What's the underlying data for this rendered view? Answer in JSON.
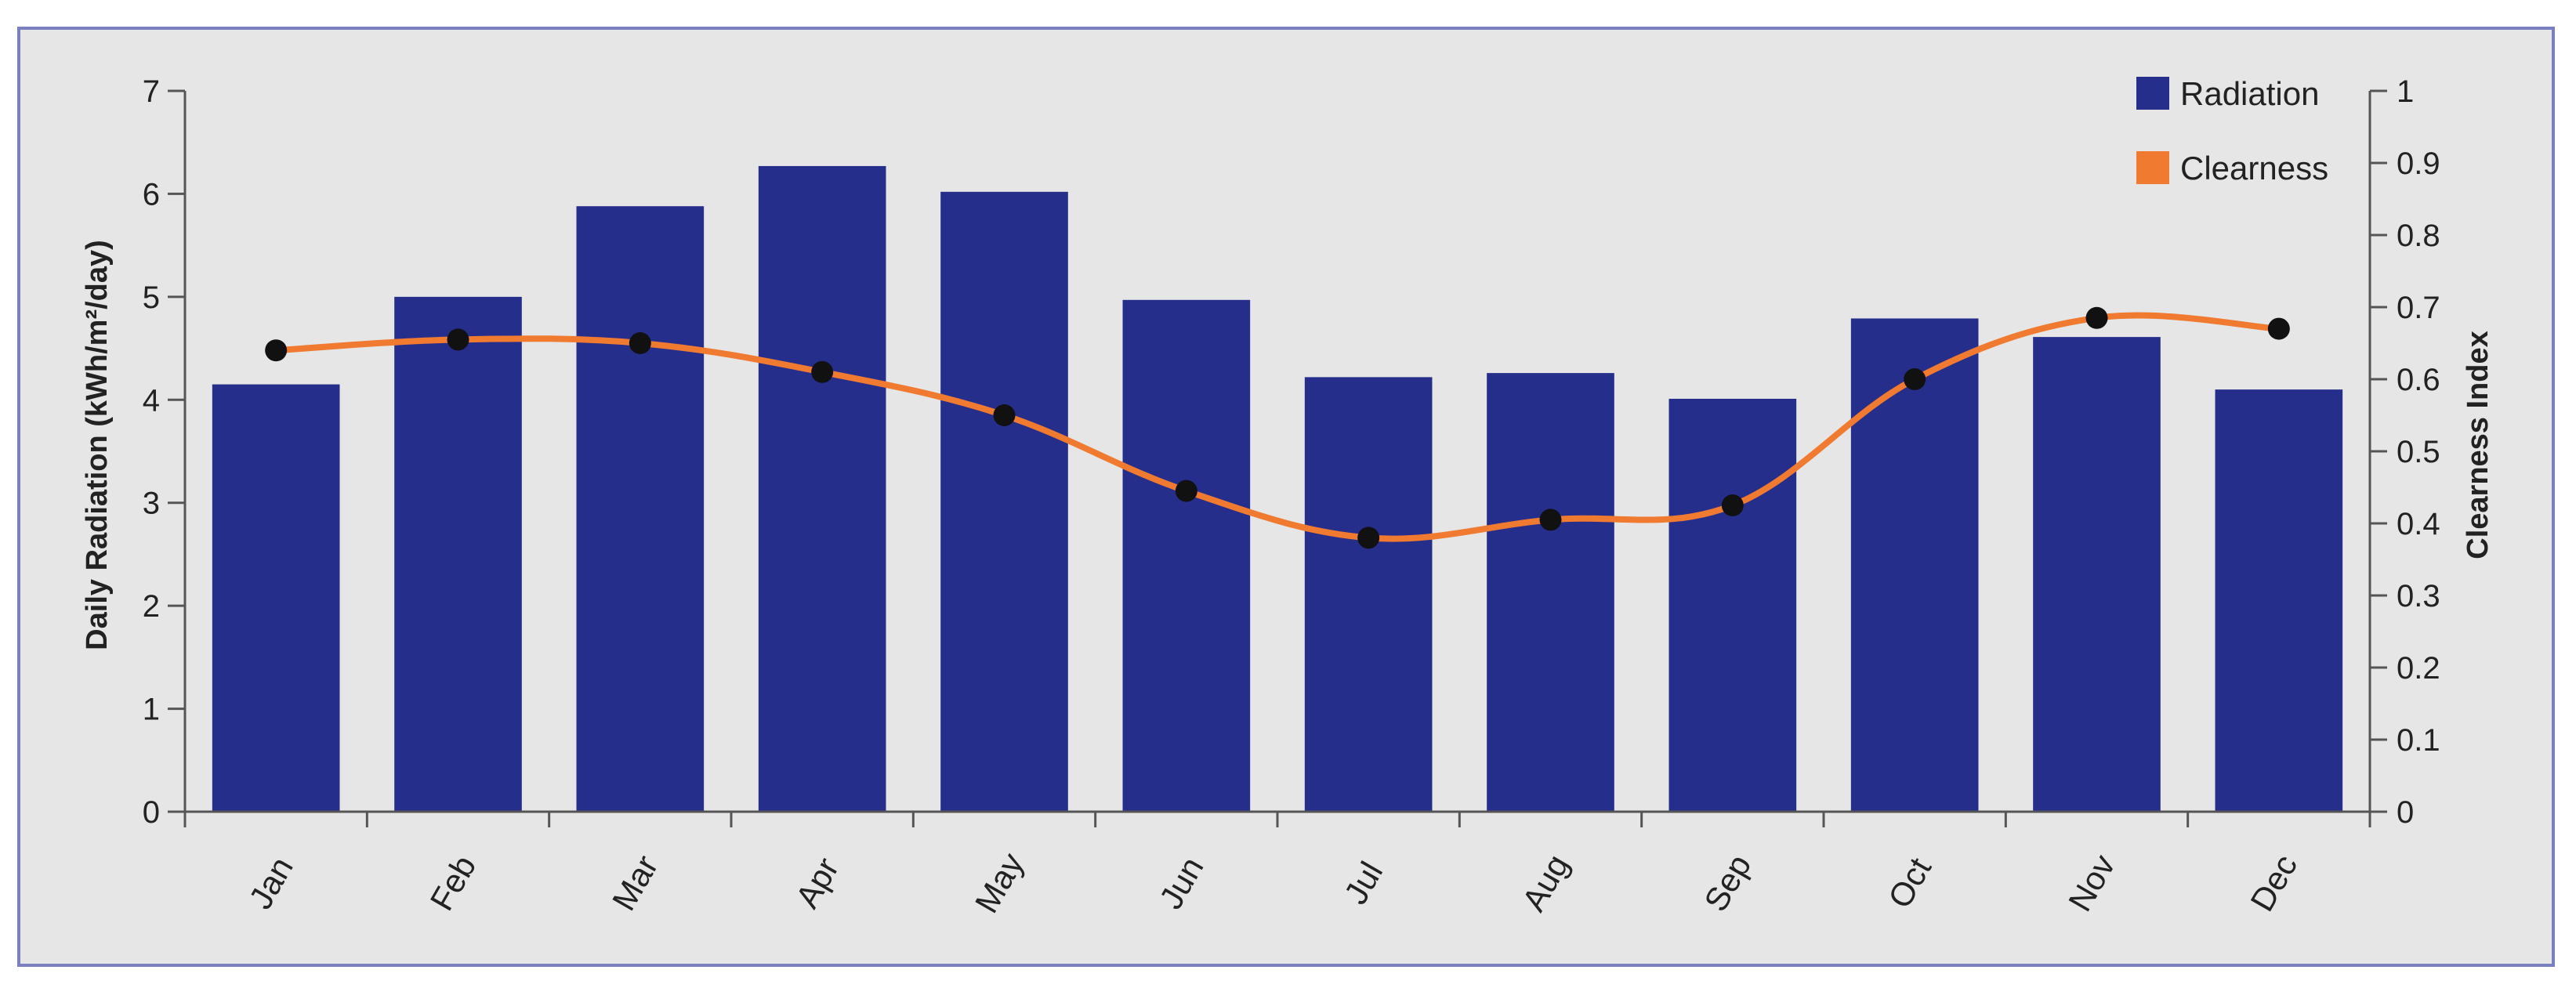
{
  "chart_data": {
    "type": "bar",
    "categories": [
      "Jan",
      "Feb",
      "Mar",
      "Apr",
      "May",
      "Jun",
      "Jul",
      "Aug",
      "Sep",
      "Oct",
      "Nov",
      "Dec"
    ],
    "series": [
      {
        "name": "Radiation",
        "type": "bar",
        "axis": "left",
        "values": [
          4.15,
          5.0,
          5.88,
          6.27,
          6.02,
          4.97,
          4.22,
          4.26,
          4.01,
          4.79,
          4.61,
          4.1
        ]
      },
      {
        "name": "Clearness",
        "type": "line",
        "axis": "right",
        "values": [
          0.64,
          0.655,
          0.65,
          0.61,
          0.55,
          0.445,
          0.38,
          0.405,
          0.425,
          0.6,
          0.685,
          0.67
        ]
      }
    ],
    "ylabel": "Daily Radiation (kWh/m²/day)",
    "ylabel_right": "Clearness Index",
    "ylim": [
      0,
      7
    ],
    "ylim_right": [
      0,
      1
    ],
    "yticks": [
      "0",
      "1",
      "2",
      "3",
      "4",
      "5",
      "6",
      "7"
    ],
    "yticks_right": [
      "0",
      "0.1",
      "0.2",
      "0.3",
      "0.4",
      "0.5",
      "0.6",
      "0.7",
      "0.8",
      "0.9",
      "1"
    ],
    "grid": false,
    "legend_position": "top-right",
    "colors": {
      "bar": "#262e8c",
      "line": "#f07a30",
      "marker": "#111111",
      "plot_background": "#e6e6e6"
    }
  }
}
